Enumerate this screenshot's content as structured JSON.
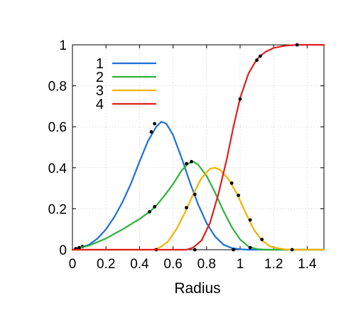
{
  "chart_data": {
    "type": "line",
    "title": "",
    "xlabel": "Radius",
    "ylabel": "",
    "xlim": [
      0,
      1.5
    ],
    "ylim": [
      0,
      1
    ],
    "grid": true,
    "legend_position": "top-left",
    "x_ticks": [
      {
        "value": 0,
        "label": "0"
      },
      {
        "value": 0.2,
        "label": "0.2"
      },
      {
        "value": 0.4,
        "label": "0.4"
      },
      {
        "value": 0.6,
        "label": "0.6"
      },
      {
        "value": 0.8,
        "label": "0.8"
      },
      {
        "value": 1.0,
        "label": "1"
      },
      {
        "value": 1.2,
        "label": "1.2"
      },
      {
        "value": 1.4,
        "label": "1.4"
      }
    ],
    "y_ticks": [
      {
        "value": 0,
        "label": "0"
      },
      {
        "value": 0.2,
        "label": "0.2"
      },
      {
        "value": 0.4,
        "label": "0.4"
      },
      {
        "value": 0.6,
        "label": "0.6"
      },
      {
        "value": 0.8,
        "label": "0.8"
      },
      {
        "value": 1.0,
        "label": "1"
      }
    ],
    "series": [
      {
        "name": "1",
        "color": "#1f6fd6",
        "curve": [
          [
            0,
            0
          ],
          [
            0.05,
            0.01
          ],
          [
            0.1,
            0.025
          ],
          [
            0.15,
            0.055
          ],
          [
            0.2,
            0.1
          ],
          [
            0.25,
            0.16
          ],
          [
            0.3,
            0.235
          ],
          [
            0.35,
            0.325
          ],
          [
            0.4,
            0.43
          ],
          [
            0.45,
            0.53
          ],
          [
            0.5,
            0.6
          ],
          [
            0.53,
            0.625
          ],
          [
            0.56,
            0.615
          ],
          [
            0.6,
            0.56
          ],
          [
            0.65,
            0.45
          ],
          [
            0.7,
            0.33
          ],
          [
            0.75,
            0.22
          ],
          [
            0.8,
            0.13
          ],
          [
            0.85,
            0.065
          ],
          [
            0.9,
            0.025
          ],
          [
            0.95,
            0.008
          ],
          [
            1.0,
            0.002
          ],
          [
            1.05,
            0
          ],
          [
            1.5,
            0
          ]
        ],
        "markers": [
          [
            0.02,
            0.005
          ],
          [
            0.04,
            0.01
          ],
          [
            0.06,
            0.015
          ],
          [
            0.47,
            0.575
          ],
          [
            0.49,
            0.615
          ],
          [
            0.96,
            0
          ]
        ]
      },
      {
        "name": "2",
        "color": "#2db23a",
        "curve": [
          [
            0,
            0
          ],
          [
            0.1,
            0.02
          ],
          [
            0.2,
            0.055
          ],
          [
            0.3,
            0.1
          ],
          [
            0.4,
            0.15
          ],
          [
            0.46,
            0.185
          ],
          [
            0.5,
            0.215
          ],
          [
            0.55,
            0.265
          ],
          [
            0.6,
            0.32
          ],
          [
            0.65,
            0.385
          ],
          [
            0.69,
            0.42
          ],
          [
            0.72,
            0.43
          ],
          [
            0.75,
            0.415
          ],
          [
            0.8,
            0.36
          ],
          [
            0.85,
            0.28
          ],
          [
            0.9,
            0.19
          ],
          [
            0.95,
            0.11
          ],
          [
            1.0,
            0.05
          ],
          [
            1.05,
            0.015
          ],
          [
            1.1,
            0.003
          ],
          [
            1.15,
            0
          ],
          [
            1.5,
            0
          ]
        ],
        "markers": [
          [
            0.02,
            0.004
          ],
          [
            0.04,
            0.009
          ],
          [
            0.46,
            0.185
          ],
          [
            0.49,
            0.21
          ],
          [
            0.68,
            0.42
          ],
          [
            0.71,
            0.43
          ],
          [
            1.06,
            0.01
          ]
        ]
      },
      {
        "name": "3",
        "color": "#f5b100",
        "curve": [
          [
            0,
            0
          ],
          [
            0.48,
            0
          ],
          [
            0.52,
            0.01
          ],
          [
            0.57,
            0.04
          ],
          [
            0.62,
            0.1
          ],
          [
            0.67,
            0.18
          ],
          [
            0.72,
            0.27
          ],
          [
            0.77,
            0.35
          ],
          [
            0.82,
            0.395
          ],
          [
            0.85,
            0.4
          ],
          [
            0.88,
            0.39
          ],
          [
            0.93,
            0.345
          ],
          [
            0.98,
            0.275
          ],
          [
            1.03,
            0.185
          ],
          [
            1.08,
            0.1
          ],
          [
            1.13,
            0.045
          ],
          [
            1.18,
            0.015
          ],
          [
            1.25,
            0.003
          ],
          [
            1.3,
            0
          ],
          [
            1.5,
            0
          ]
        ],
        "markers": [
          [
            0.5,
            0
          ],
          [
            0.68,
            0.205
          ],
          [
            0.73,
            0.27
          ],
          [
            0.95,
            0.325
          ],
          [
            0.99,
            0.265
          ],
          [
            1.06,
            0.145
          ],
          [
            1.13,
            0.05
          ],
          [
            1.31,
            0
          ]
        ]
      },
      {
        "name": "4",
        "color": "#de1f1f",
        "curve": [
          [
            0,
            0
          ],
          [
            0.68,
            0
          ],
          [
            0.72,
            0.01
          ],
          [
            0.77,
            0.045
          ],
          [
            0.82,
            0.13
          ],
          [
            0.87,
            0.27
          ],
          [
            0.92,
            0.44
          ],
          [
            0.96,
            0.6
          ],
          [
            1.0,
            0.74
          ],
          [
            1.05,
            0.86
          ],
          [
            1.1,
            0.93
          ],
          [
            1.15,
            0.965
          ],
          [
            1.2,
            0.985
          ],
          [
            1.27,
            0.996
          ],
          [
            1.35,
            1
          ],
          [
            1.5,
            1
          ]
        ],
        "markers": [
          [
            0.73,
            0
          ],
          [
            1.0,
            0.735
          ],
          [
            1.1,
            0.925
          ],
          [
            1.12,
            0.945
          ],
          [
            1.34,
            1
          ]
        ]
      }
    ]
  }
}
